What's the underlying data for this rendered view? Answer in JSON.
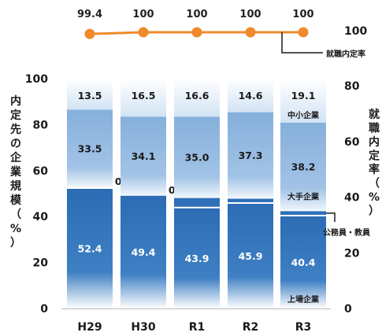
{
  "chart_data": {
    "type": "bar",
    "stacked": true,
    "categories": [
      "H29",
      "H30",
      "R1",
      "R2",
      "R3"
    ],
    "series": [
      {
        "name": "上場企業",
        "values": [
          52.4,
          49.4,
          43.9,
          45.9,
          40.4
        ],
        "color": "#2e6fb7"
      },
      {
        "name": "公務員・教員",
        "values": [
          0.6,
          0.0,
          4.5,
          2.2,
          2.3
        ],
        "color": "#2e6fb7"
      },
      {
        "name": "大手企業",
        "values": [
          33.5,
          34.1,
          35.0,
          37.3,
          38.2
        ],
        "color": "#8db4de"
      },
      {
        "name": "中小企業",
        "values": [
          13.5,
          16.5,
          16.6,
          14.6,
          19.1
        ],
        "color": "#e3eef8"
      }
    ],
    "line": {
      "name": "就職内定率",
      "values": [
        99.4,
        100,
        100,
        100,
        100
      ],
      "color": "#f08a2c",
      "ylim": [
        0,
        100
      ]
    },
    "ylabel": "内定先の企業規模（%）",
    "y2label": "就職内定率（%）",
    "ylim": [
      0,
      100
    ],
    "yticks": [
      0,
      20,
      40,
      60,
      80,
      100
    ],
    "y2ticks": [
      0,
      20,
      40,
      60,
      80
    ],
    "y2top_tick": "100",
    "line_label": "就職内定率"
  }
}
